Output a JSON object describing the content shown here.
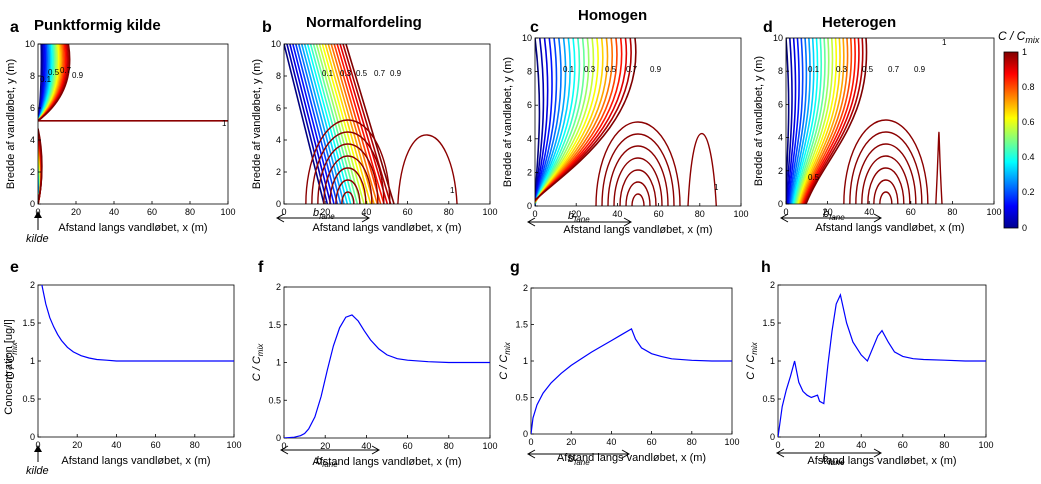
{
  "colorbar": {
    "label": "C/C_mix",
    "label_main": "C / C",
    "label_sub": "mix",
    "ticks": [
      "1",
      "0.8",
      "0.6",
      "0.4",
      "0.2",
      "0"
    ],
    "colors": [
      "#00008f",
      "#0000ff",
      "#0080ff",
      "#00ffff",
      "#80ff80",
      "#ffff00",
      "#ff8000",
      "#ff0000",
      "#800000"
    ]
  },
  "annotations": {
    "b_main": "b",
    "b_sub": "fane",
    "kilde": "kilde"
  },
  "panels": [
    {
      "letter": "a",
      "title": "Punktformig kilde",
      "xlabel": "Afstand langs vandløbet, x (m)",
      "ylabel": "Bredde af vandløbet, y (m)",
      "xticks": [
        "0",
        "20",
        "40",
        "60",
        "80",
        "100"
      ],
      "yticks": [
        "0",
        "2",
        "4",
        "6",
        "8",
        "10"
      ],
      "contour_labels": [
        "0.1",
        "0.3",
        "0.5",
        "0.7",
        "0.9",
        "1"
      ]
    },
    {
      "letter": "b",
      "title": "Normalfordeling",
      "xlabel": "Afstand langs vandløbet, x (m)",
      "ylabel": "Bredde af vandløbet, y (m)",
      "xticks": [
        "0",
        "20",
        "40",
        "60",
        "80",
        "100"
      ],
      "yticks": [
        "0",
        "2",
        "4",
        "6",
        "8",
        "10"
      ],
      "contour_labels": [
        "0.1",
        "0.3",
        "0.5",
        "0.7",
        "0.9",
        "1"
      ]
    },
    {
      "letter": "c",
      "title": "Homogen",
      "xlabel": "Afstand langs vandløbet, x (m)",
      "ylabel": "Bredde af vandløbet, y (m)",
      "xticks": [
        "0",
        "20",
        "40",
        "60",
        "80",
        "100"
      ],
      "yticks": [
        "0",
        "2",
        "4",
        "6",
        "8",
        "10"
      ],
      "contour_labels": [
        "0.1",
        "0.3",
        "0.5",
        "0.7",
        "0.9",
        "1"
      ]
    },
    {
      "letter": "d",
      "title": "Heterogen",
      "xlabel": "Afstand langs vandløbet, x (m)",
      "ylabel": "Bredde af vandløbet, y (m)",
      "xticks": [
        "0",
        "20",
        "40",
        "60",
        "80",
        "100"
      ],
      "yticks": [
        "0",
        "2",
        "4",
        "6",
        "8",
        "10"
      ],
      "contour_labels": [
        "0.1",
        "0.3",
        "0.5",
        "0.5",
        "0.7",
        "0.9",
        "1"
      ]
    },
    {
      "letter": "e",
      "title": "",
      "xlabel": "Afstand langs vandløbet, x (m)",
      "ylabel": "C/C_mix",
      "ylabel_overlay": "Concentration [ug/l]",
      "xticks": [
        "0",
        "20",
        "40",
        "60",
        "80",
        "100"
      ],
      "yticks": [
        "0",
        "0.5",
        "1",
        "1.5",
        "2"
      ]
    },
    {
      "letter": "f",
      "title": "",
      "xlabel": "Afstand langs vandløbet, x (m)",
      "ylabel": "C/C_mix",
      "xticks": [
        "0",
        "20",
        "40",
        "60",
        "80",
        "100"
      ],
      "yticks": [
        "0",
        "0.5",
        "1",
        "1.5",
        "2"
      ]
    },
    {
      "letter": "g",
      "title": "",
      "xlabel": "Afstand langs vandløbet, x (m)",
      "ylabel": "C/C_mix",
      "xticks": [
        "0",
        "20",
        "40",
        "60",
        "80",
        "100"
      ],
      "yticks": [
        "0",
        "0.5",
        "1",
        "1.5",
        "2"
      ]
    },
    {
      "letter": "h",
      "title": "",
      "xlabel": "Afstand langs vandløbet, x (m)",
      "ylabel": "C/C_mix",
      "xticks": [
        "0",
        "20",
        "40",
        "60",
        "80",
        "100"
      ],
      "yticks": [
        "0",
        "0.5",
        "1",
        "1.5",
        "2"
      ]
    }
  ],
  "chart_data": [
    {
      "panel": "e",
      "type": "line",
      "xlim": [
        0,
        100
      ],
      "ylim": [
        0,
        2
      ],
      "color": "#0000ff",
      "x": [
        0,
        2,
        4,
        6,
        8,
        10,
        12,
        15,
        18,
        22,
        26,
        30,
        35,
        40,
        50,
        60,
        80,
        100
      ],
      "y": [
        2.9,
        2.0,
        1.75,
        1.57,
        1.45,
        1.35,
        1.27,
        1.18,
        1.12,
        1.07,
        1.04,
        1.02,
        1.01,
        1.0,
        1.0,
        1.0,
        1.0,
        1.0
      ]
    },
    {
      "panel": "f",
      "type": "line",
      "xlim": [
        0,
        100
      ],
      "ylim": [
        0,
        2
      ],
      "color": "#0000ff",
      "x": [
        0,
        5,
        8,
        10,
        12,
        15,
        18,
        21,
        24,
        27,
        30,
        33,
        36,
        39,
        42,
        46,
        50,
        55,
        60,
        70,
        80,
        100
      ],
      "y": [
        0,
        0.01,
        0.03,
        0.06,
        0.12,
        0.28,
        0.55,
        0.9,
        1.22,
        1.46,
        1.6,
        1.63,
        1.55,
        1.42,
        1.3,
        1.18,
        1.1,
        1.05,
        1.03,
        1.01,
        1.0,
        1.0
      ]
    },
    {
      "panel": "g",
      "type": "line",
      "xlim": [
        0,
        100
      ],
      "ylim": [
        0,
        2
      ],
      "color": "#0000ff",
      "x": [
        0,
        1,
        3,
        6,
        10,
        15,
        20,
        25,
        30,
        35,
        40,
        45,
        50,
        52,
        55,
        60,
        65,
        70,
        80,
        90,
        100
      ],
      "y": [
        0,
        0.22,
        0.4,
        0.56,
        0.7,
        0.83,
        0.94,
        1.03,
        1.12,
        1.2,
        1.28,
        1.36,
        1.44,
        1.3,
        1.18,
        1.1,
        1.06,
        1.03,
        1.01,
        1.0,
        1.0
      ]
    },
    {
      "panel": "h",
      "type": "line",
      "xlim": [
        0,
        100
      ],
      "ylim": [
        0,
        2
      ],
      "color": "#0000ff",
      "x": [
        0,
        2,
        4,
        6,
        8,
        10,
        12,
        14,
        16,
        19,
        20,
        22,
        24,
        26,
        28,
        30,
        33,
        36,
        40,
        43,
        46,
        48,
        50,
        53,
        56,
        60,
        65,
        70,
        80,
        90,
        100
      ],
      "y": [
        0,
        0.4,
        0.62,
        0.8,
        1.0,
        0.72,
        0.6,
        0.55,
        0.52,
        0.55,
        0.47,
        0.44,
        0.95,
        1.4,
        1.75,
        1.87,
        1.5,
        1.25,
        1.08,
        1.0,
        1.2,
        1.33,
        1.4,
        1.25,
        1.12,
        1.06,
        1.03,
        1.02,
        1.01,
        1.0,
        1.0
      ]
    }
  ]
}
